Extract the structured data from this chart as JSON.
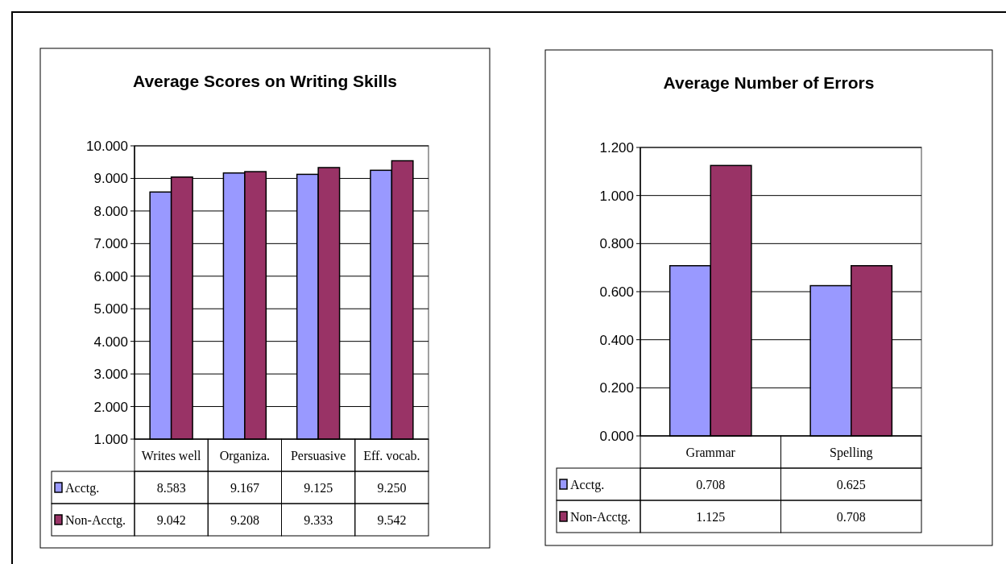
{
  "chart_data": [
    {
      "type": "bar",
      "title": "Average Scores on Writing Skills",
      "categories": [
        "Writes well",
        "Organiza.",
        "Persuasive",
        "Eff. vocab."
      ],
      "series": [
        {
          "name": "Acctg.",
          "color": "#9999ff",
          "values": [
            8.583,
            9.167,
            9.125,
            9.25
          ],
          "value_labels": [
            "8.583",
            "9.167",
            "9.125",
            "9.250"
          ]
        },
        {
          "name": "Non-Acctg.",
          "color": "#993366",
          "values": [
            9.042,
            9.208,
            9.333,
            9.542
          ],
          "value_labels": [
            "9.042",
            "9.208",
            "9.333",
            "9.542"
          ]
        }
      ],
      "ylim": [
        1,
        10
      ],
      "yticks": [
        {
          "value": 1,
          "label": "1.000"
        },
        {
          "value": 2,
          "label": "2.000"
        },
        {
          "value": 3,
          "label": "3.000"
        },
        {
          "value": 4,
          "label": "4.000"
        },
        {
          "value": 5,
          "label": "5.000"
        },
        {
          "value": 6,
          "label": "6.000"
        },
        {
          "value": 7,
          "label": "7.000"
        },
        {
          "value": 8,
          "label": "8.000"
        },
        {
          "value": 9,
          "label": "9.000"
        },
        {
          "value": 10,
          "label": "10.000"
        }
      ],
      "grid": "y",
      "legend": "bottom"
    },
    {
      "type": "bar",
      "title": "Average Number of Errors",
      "categories": [
        "Grammar",
        "Spelling"
      ],
      "series": [
        {
          "name": "Acctg.",
          "color": "#9999ff",
          "values": [
            0.708,
            0.625
          ],
          "value_labels": [
            "0.708",
            "0.625"
          ]
        },
        {
          "name": "Non-Acctg.",
          "color": "#993366",
          "values": [
            1.125,
            0.708
          ],
          "value_labels": [
            "1.125",
            "0.708"
          ]
        }
      ],
      "ylim": [
        0,
        1.2
      ],
      "yticks": [
        {
          "value": 0,
          "label": "0.000"
        },
        {
          "value": 0.2,
          "label": "0.200"
        },
        {
          "value": 0.4,
          "label": "0.400"
        },
        {
          "value": 0.6,
          "label": "0.600"
        },
        {
          "value": 0.8,
          "label": "0.800"
        },
        {
          "value": 1,
          "label": "1.000"
        },
        {
          "value": 1.2,
          "label": "1.200"
        }
      ],
      "grid": "y",
      "legend": "bottom"
    }
  ]
}
